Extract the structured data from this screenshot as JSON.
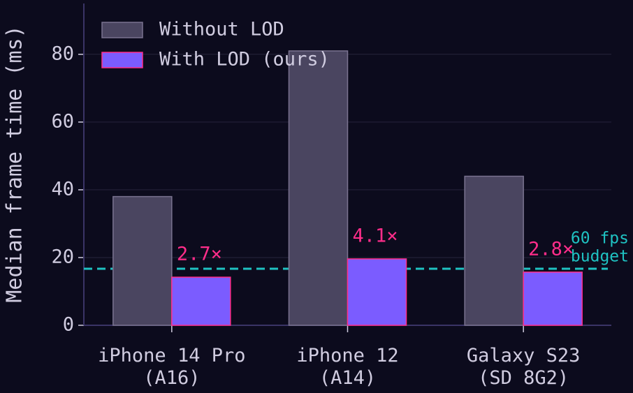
{
  "chart_data": {
    "type": "bar",
    "ylabel": "Median frame time (ms)",
    "categories": [
      [
        "iPhone 14 Pro",
        "(A16)"
      ],
      [
        "iPhone 12",
        "(A14)"
      ],
      [
        "Galaxy S23",
        "(SD 8G2)"
      ]
    ],
    "series": [
      {
        "name": "Without LOD",
        "color": "#4a4560",
        "edge": "#7a7390",
        "values": [
          38,
          81,
          44
        ]
      },
      {
        "name": "With LOD (ours)",
        "color": "#7b5cff",
        "edge": "#ff2d8a",
        "values": [
          14.2,
          19.6,
          15.7
        ]
      }
    ],
    "annotations": [
      "2.7×",
      "4.1×",
      "2.8×"
    ],
    "annotation_color": "#ff2d8a",
    "reference_line": {
      "value": 16.7,
      "label": [
        "60 fps",
        "budget"
      ],
      "color": "#1fc2c2"
    },
    "ylim": [
      0,
      95
    ],
    "yticks": [
      0,
      20,
      40,
      60,
      80
    ],
    "grid": true,
    "legend": "upper left"
  }
}
